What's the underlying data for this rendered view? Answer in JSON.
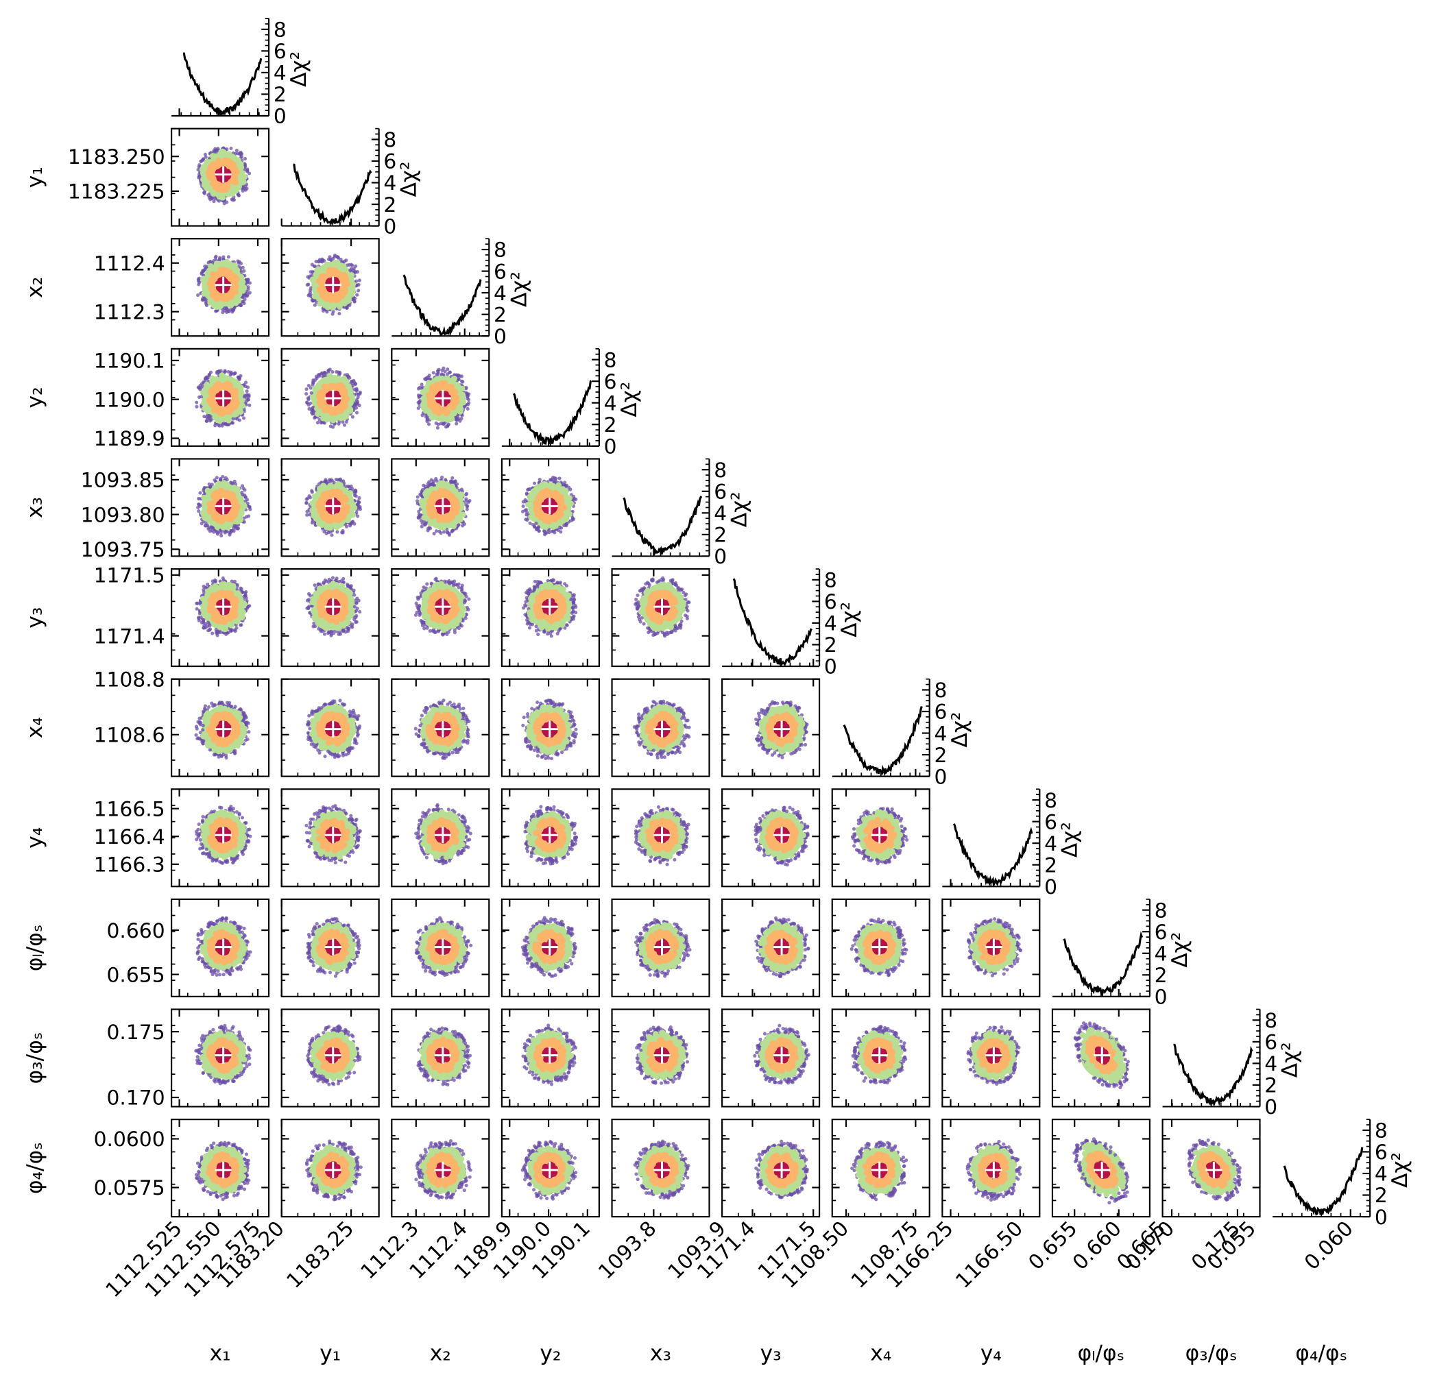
{
  "chart_data": {
    "type": "scatter",
    "subtype": "corner-plot",
    "title": "",
    "diagonal_ylabel": "Δχ²",
    "diagonal_ylim": [
      0,
      9
    ],
    "diagonal_ticks": [
      0,
      2,
      4,
      6,
      8
    ],
    "diagonal_tick_labels": [
      "0",
      "2",
      "4",
      "6",
      "8"
    ],
    "confidence_colors": [
      "#6a4fa8",
      "#b6df94",
      "#fbb469",
      "#b5114a"
    ],
    "marker": {
      "symbol": "+",
      "color": "#ffffff"
    },
    "grid": false,
    "parameters": [
      {
        "name": "x1",
        "label": "x₁",
        "best": 1112.553,
        "range": [
          1112.52,
          1112.582
        ],
        "yticks": [],
        "ytick_labels": [],
        "xticks": [
          1112.525,
          1112.55,
          1112.575
        ],
        "xtick_labels": [
          "1112.525",
          "1112.550",
          "1112.575"
        ]
      },
      {
        "name": "y1",
        "label": "y₁",
        "best": 1183.237,
        "range": [
          1183.2,
          1183.27
        ],
        "yticks": [
          1183.225,
          1183.25
        ],
        "ytick_labels": [
          "1183.225",
          "1183.250"
        ],
        "xticks": [
          1183.2,
          1183.25
        ],
        "xtick_labels": [
          "1183.20",
          "1183.25"
        ]
      },
      {
        "name": "x2",
        "label": "x₂",
        "best": 1112.355,
        "range": [
          1112.25,
          1112.45
        ],
        "yticks": [
          1112.3,
          1112.4
        ],
        "ytick_labels": [
          "1112.3",
          "1112.4"
        ],
        "xticks": [
          1112.3,
          1112.4
        ],
        "xtick_labels": [
          "1112.3",
          "1112.4"
        ]
      },
      {
        "name": "y2",
        "label": "y₂",
        "best": 1190.003,
        "range": [
          1189.88,
          1190.13
        ],
        "yticks": [
          1189.9,
          1190.0,
          1190.1
        ],
        "ytick_labels": [
          "1189.9",
          "1190.0",
          "1190.1"
        ],
        "xticks": [
          1189.9,
          1190.0,
          1190.1
        ],
        "xtick_labels": [
          "1189.9",
          "1190.0",
          "1190.1"
        ]
      },
      {
        "name": "x3",
        "label": "x₃",
        "best": 1093.812,
        "range": [
          1093.74,
          1093.88
        ],
        "yticks": [
          1093.75,
          1093.8,
          1093.85
        ],
        "ytick_labels": [
          "1093.75",
          "1093.80",
          "1093.85"
        ],
        "xticks": [
          1093.8,
          1093.9
        ],
        "xtick_labels": [
          "1093.8",
          "1093.9"
        ]
      },
      {
        "name": "y3",
        "label": "y₃",
        "best": 1171.448,
        "range": [
          1171.35,
          1171.51
        ],
        "yticks": [
          1171.4,
          1171.5
        ],
        "ytick_labels": [
          "1171.4",
          "1171.5"
        ],
        "xticks": [
          1171.4,
          1171.5
        ],
        "xtick_labels": [
          "1171.4",
          "1171.5"
        ]
      },
      {
        "name": "x4",
        "label": "x₄",
        "best": 1108.62,
        "range": [
          1108.45,
          1108.8
        ],
        "yticks": [
          1108.6,
          1108.8
        ],
        "ytick_labels": [
          "1108.6",
          "1108.8"
        ],
        "xticks": [
          1108.5,
          1108.75
        ],
        "xtick_labels": [
          "1108.50",
          "1108.75"
        ]
      },
      {
        "name": "y4",
        "label": "y₄",
        "best": 1166.405,
        "range": [
          1166.22,
          1166.57
        ],
        "yticks": [
          1166.3,
          1166.4,
          1166.5
        ],
        "ytick_labels": [
          "1166.3",
          "1166.4",
          "1166.5"
        ],
        "xticks": [
          1166.25,
          1166.5
        ],
        "xtick_labels": [
          "1166.25",
          "1166.50"
        ]
      },
      {
        "name": "phi_l",
        "label": "φₗ/φₛ",
        "best": 0.6581,
        "range": [
          0.6525,
          0.6635
        ],
        "yticks": [
          0.655,
          0.66
        ],
        "ytick_labels": [
          "0.655",
          "0.660"
        ],
        "xticks": [
          0.655,
          0.66,
          0.665
        ],
        "xtick_labels": [
          "0.655",
          "0.660",
          "0.665"
        ]
      },
      {
        "name": "phi_3",
        "label": "φ₃/φₛ",
        "best": 0.1732,
        "range": [
          0.1693,
          0.1767
        ],
        "yticks": [
          0.17,
          0.175
        ],
        "ytick_labels": [
          "0.170",
          "0.175"
        ],
        "xticks": [
          0.17,
          0.175
        ],
        "xtick_labels": [
          "0.170",
          "0.175"
        ]
      },
      {
        "name": "phi_4",
        "label": "φ₄/φₛ",
        "best": 0.0584,
        "range": [
          0.056,
          0.061
        ],
        "yticks": [
          0.0575,
          0.06
        ],
        "ytick_labels": [
          "0.0575",
          "0.0600"
        ],
        "xticks": [
          0.055,
          0.06
        ],
        "xtick_labels": [
          "0.055",
          "0.060"
        ]
      }
    ]
  }
}
